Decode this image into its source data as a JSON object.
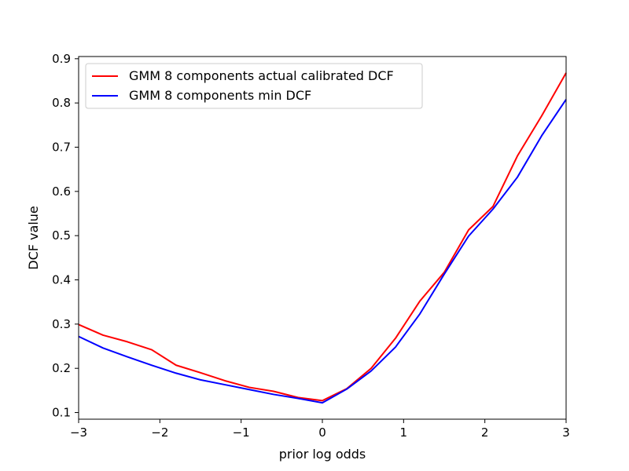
{
  "chart_data": {
    "type": "line",
    "title": "",
    "xlabel": "prior log odds",
    "ylabel": "DCF value",
    "xlim": [
      -3,
      3
    ],
    "ylim": [
      0.085,
      0.905
    ],
    "xticks": [
      -3,
      -2,
      -1,
      0,
      1,
      2,
      3
    ],
    "xtick_labels": [
      "−3",
      "−2",
      "−1",
      "0",
      "1",
      "2",
      "3"
    ],
    "yticks": [
      0.1,
      0.2,
      0.3,
      0.4,
      0.5,
      0.6,
      0.7,
      0.8,
      0.9
    ],
    "ytick_labels": [
      "0.1",
      "0.2",
      "0.3",
      "0.4",
      "0.5",
      "0.6",
      "0.7",
      "0.8",
      "0.9"
    ],
    "grid": false,
    "legend_position": "top-left",
    "x": [
      -3.0,
      -2.7,
      -2.4,
      -2.1,
      -1.8,
      -1.5,
      -1.2,
      -0.9,
      -0.6,
      -0.3,
      0.0,
      0.3,
      0.6,
      0.9,
      1.2,
      1.5,
      1.8,
      2.1,
      2.4,
      2.7,
      3.0
    ],
    "series": [
      {
        "name": "GMM 8 components actual calibrated DCF",
        "color": "#ff0000",
        "values": [
          0.299,
          0.275,
          0.26,
          0.242,
          0.207,
          0.19,
          0.172,
          0.157,
          0.148,
          0.134,
          0.127,
          0.154,
          0.2,
          0.268,
          0.352,
          0.417,
          0.513,
          0.566,
          0.68,
          0.771,
          0.868
        ]
      },
      {
        "name": "GMM 8 components min DCF",
        "color": "#0000ff",
        "values": [
          0.272,
          0.246,
          0.226,
          0.207,
          0.189,
          0.174,
          0.163,
          0.152,
          0.141,
          0.132,
          0.122,
          0.153,
          0.194,
          0.248,
          0.323,
          0.413,
          0.499,
          0.56,
          0.632,
          0.726,
          0.808
        ]
      }
    ]
  }
}
